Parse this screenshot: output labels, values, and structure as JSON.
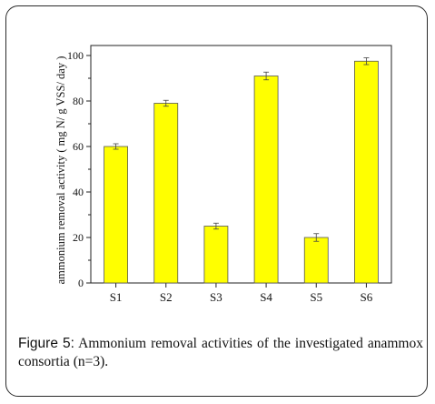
{
  "figure": {
    "label": "Figure",
    "number": "5:",
    "caption": "Ammonium removal activities of the investigated anammox consortia (n=3)."
  },
  "chart_data": {
    "type": "bar",
    "categories": [
      "S1",
      "S2",
      "S3",
      "S4",
      "S5",
      "S6"
    ],
    "values": [
      60,
      79,
      25,
      91,
      20,
      97.5
    ],
    "errors": [
      1.2,
      1.3,
      1.3,
      1.7,
      1.7,
      1.5
    ],
    "ylabel": "ammonium removal activity ( mg N/ g VSS/ day )",
    "xlabel": "",
    "ylim": [
      0,
      100
    ],
    "yticks": [
      0,
      20,
      40,
      60,
      80,
      100
    ],
    "bar_color": "#ffff00",
    "bar_edge_color": "#555555"
  }
}
